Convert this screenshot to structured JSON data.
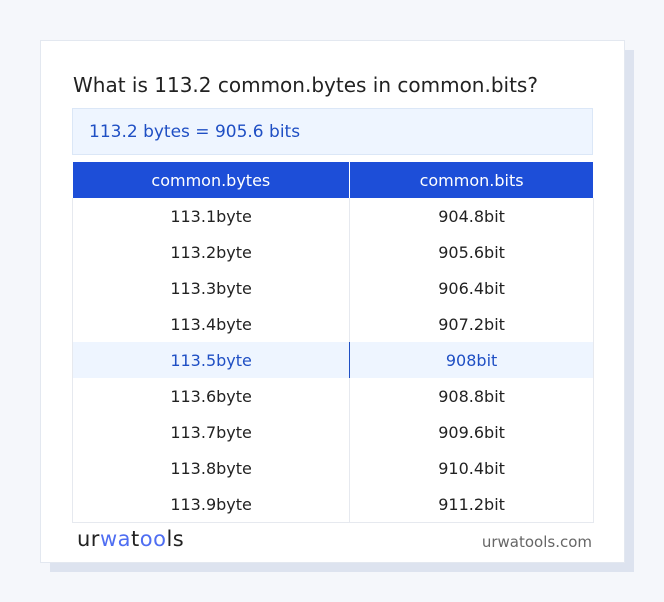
{
  "title": "What is 113.2 common.bytes in common.bits?",
  "result": "113.2 bytes = 905.6 bits",
  "table": {
    "headers": [
      "common.bytes",
      "common.bits"
    ],
    "rows": [
      [
        "113.1byte",
        "904.8bit"
      ],
      [
        "113.2byte",
        "905.6bit"
      ],
      [
        "113.3byte",
        "906.4bit"
      ],
      [
        "113.4byte",
        "907.2bit"
      ],
      [
        "113.5byte",
        "908bit"
      ],
      [
        "113.6byte",
        "908.8bit"
      ],
      [
        "113.7byte",
        "909.6bit"
      ],
      [
        "113.8byte",
        "910.4bit"
      ],
      [
        "113.9byte",
        "911.2bit"
      ]
    ],
    "highlighted_row": 4
  },
  "footer": {
    "logo": "urwatools",
    "logo_parts": [
      "ur",
      "wa",
      "t",
      "oo",
      "ls"
    ],
    "domain": "urwatools.com"
  },
  "colors": {
    "accent": "#1d4ed8",
    "highlight_bg": "#eef5ff"
  }
}
